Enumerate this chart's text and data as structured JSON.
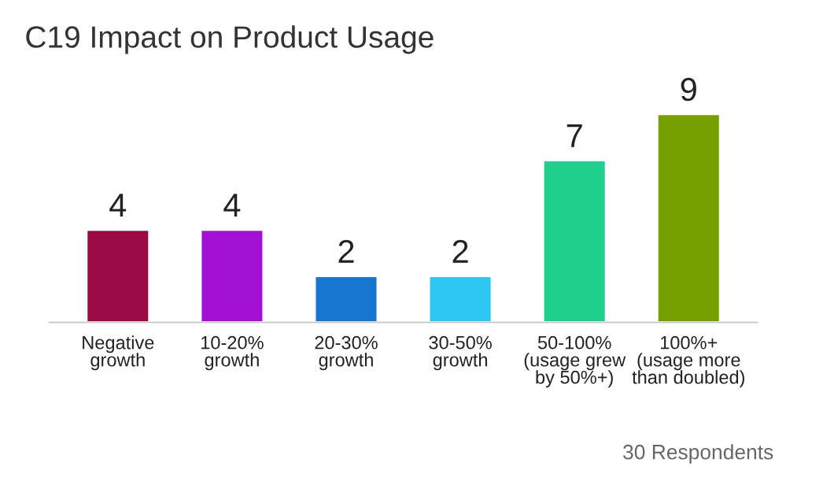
{
  "chart_data": {
    "type": "bar",
    "title": "C19 Impact on Product Usage",
    "categories": [
      "Negative\ngrowth",
      "10-20%\ngrowth",
      "20-30%\ngrowth",
      "30-50%\ngrowth",
      "50-100%\n(usage grew\nby 50%+)",
      "100%+\n(usage more\nthan doubled)"
    ],
    "values": [
      4,
      4,
      2,
      2,
      7,
      9
    ],
    "colors": [
      "#9a0a44",
      "#a312d4",
      "#1676d0",
      "#2ec6f2",
      "#1fd08c",
      "#76a000"
    ],
    "data_labels": true,
    "annotations": [
      "30 Respondents"
    ]
  }
}
